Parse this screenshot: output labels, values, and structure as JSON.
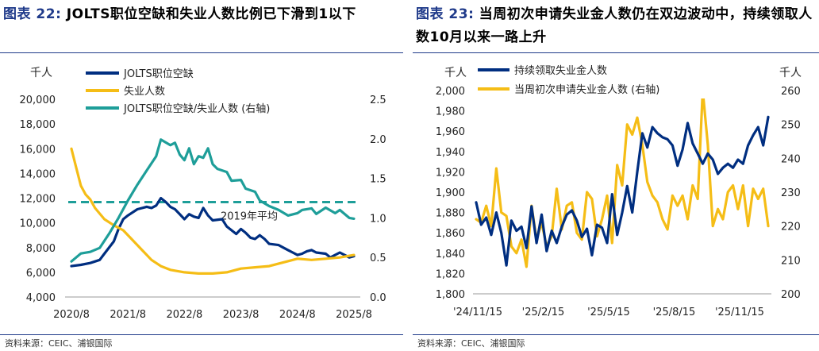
{
  "left_figure": {
    "title_tag": "图表 22:",
    "title_text": "JOLTS职位空缺和失业人数比例已下滑到1以下",
    "source": "资料来源：CEIC、浦银国际"
  },
  "right_figure": {
    "title_tag": "图表 23:",
    "title_text": "当周初次申请失业金人数仍在双边波动中，持续领取人数10月以来一路上升",
    "source": "资料来源：CEIC、浦银国际"
  },
  "chart_data": [
    {
      "type": "line",
      "title": "",
      "y_unit_label": "千人",
      "ylim": [
        4000,
        20000
      ],
      "y2lim": [
        0.0,
        2.5
      ],
      "yticks": [
        "20,000",
        "18,000",
        "16,000",
        "14,000",
        "12,000",
        "10,000",
        "8,000",
        "6,000",
        "4,000"
      ],
      "y2ticks": [
        "2.5",
        "2.0",
        "1.5",
        "1.0",
        "0.5",
        "0.0"
      ],
      "xticks": [
        "2020/8",
        "2021/8",
        "2022/8",
        "2023/8",
        "2024/8",
        "2025/8"
      ],
      "legend_position": "top-left",
      "annotation": "2019年平均",
      "reference_line": {
        "axis": "right",
        "value": 1.2,
        "style": "dashed"
      },
      "series": [
        {
          "name": "JOLTS职位空缺",
          "axis": "left",
          "color": "#002e80",
          "points": [
            [
              "2020-08",
              6500
            ],
            [
              "2020-10",
              6600
            ],
            [
              "2020-12",
              6750
            ],
            [
              "2021-02",
              7000
            ],
            [
              "2021-03",
              7500
            ],
            [
              "2021-05",
              8500
            ],
            [
              "2021-06",
              9500
            ],
            [
              "2021-07",
              10300
            ],
            [
              "2021-08",
              10600
            ],
            [
              "2021-10",
              11100
            ],
            [
              "2021-12",
              11300
            ],
            [
              "2022-01",
              11200
            ],
            [
              "2022-02",
              11400
            ],
            [
              "2022-03",
              12000
            ],
            [
              "2022-04",
              11700
            ],
            [
              "2022-05",
              11300
            ],
            [
              "2022-06",
              11100
            ],
            [
              "2022-07",
              10700
            ],
            [
              "2022-08",
              10300
            ],
            [
              "2022-09",
              10700
            ],
            [
              "2022-10",
              10500
            ],
            [
              "2022-11",
              10400
            ],
            [
              "2022-12",
              11200
            ],
            [
              "2023-01",
              10600
            ],
            [
              "2023-02",
              10200
            ],
            [
              "2023-04",
              10300
            ],
            [
              "2023-05",
              9700
            ],
            [
              "2023-07",
              9100
            ],
            [
              "2023-08",
              9500
            ],
            [
              "2023-09",
              9200
            ],
            [
              "2023-10",
              8800
            ],
            [
              "2023-11",
              8700
            ],
            [
              "2023-12",
              9000
            ],
            [
              "2024-01",
              8700
            ],
            [
              "2024-02",
              8300
            ],
            [
              "2024-04",
              8200
            ],
            [
              "2024-05",
              8000
            ],
            [
              "2024-06",
              7800
            ],
            [
              "2024-07",
              7600
            ],
            [
              "2024-08",
              7400
            ],
            [
              "2024-09",
              7500
            ],
            [
              "2024-10",
              7700
            ],
            [
              "2024-11",
              7800
            ],
            [
              "2024-12",
              7600
            ],
            [
              "2025-02",
              7500
            ],
            [
              "2025-03",
              7200
            ],
            [
              "2025-05",
              7600
            ],
            [
              "2025-06",
              7400
            ],
            [
              "2025-07",
              7200
            ],
            [
              "2025-08",
              7300
            ]
          ]
        },
        {
          "name": "失业人数",
          "axis": "left",
          "color": "#f5bd16",
          "points": [
            [
              "2020-08",
              16000
            ],
            [
              "2020-09",
              14500
            ],
            [
              "2020-10",
              13000
            ],
            [
              "2020-11",
              12300
            ],
            [
              "2020-12",
              11900
            ],
            [
              "2021-01",
              11200
            ],
            [
              "2021-03",
              10300
            ],
            [
              "2021-05",
              9800
            ],
            [
              "2021-07",
              9400
            ],
            [
              "2021-09",
              8600
            ],
            [
              "2021-11",
              7800
            ],
            [
              "2022-01",
              7000
            ],
            [
              "2022-03",
              6500
            ],
            [
              "2022-05",
              6200
            ],
            [
              "2022-08",
              6000
            ],
            [
              "2022-11",
              5900
            ],
            [
              "2023-02",
              5900
            ],
            [
              "2023-05",
              6000
            ],
            [
              "2023-08",
              6300
            ],
            [
              "2023-11",
              6400
            ],
            [
              "2024-02",
              6500
            ],
            [
              "2024-05",
              6800
            ],
            [
              "2024-08",
              7100
            ],
            [
              "2024-11",
              7000
            ],
            [
              "2025-02",
              7100
            ],
            [
              "2025-05",
              7200
            ],
            [
              "2025-08",
              7400
            ]
          ]
        },
        {
          "name": "JOLTS职位空缺/失业人数 (右轴)",
          "axis": "right",
          "color": "#1e9e99",
          "points": [
            [
              "2020-08",
              0.45
            ],
            [
              "2020-10",
              0.55
            ],
            [
              "2020-12",
              0.57
            ],
            [
              "2021-02",
              0.62
            ],
            [
              "2021-04",
              0.8
            ],
            [
              "2021-06",
              1.0
            ],
            [
              "2021-08",
              1.22
            ],
            [
              "2021-10",
              1.42
            ],
            [
              "2021-12",
              1.6
            ],
            [
              "2022-02",
              1.78
            ],
            [
              "2022-03",
              1.99
            ],
            [
              "2022-05",
              1.92
            ],
            [
              "2022-06",
              1.95
            ],
            [
              "2022-07",
              1.8
            ],
            [
              "2022-08",
              1.73
            ],
            [
              "2022-09",
              1.88
            ],
            [
              "2022-10",
              1.68
            ],
            [
              "2022-11",
              1.78
            ],
            [
              "2022-12",
              1.76
            ],
            [
              "2023-01",
              1.88
            ],
            [
              "2023-02",
              1.68
            ],
            [
              "2023-03",
              1.62
            ],
            [
              "2023-05",
              1.58
            ],
            [
              "2023-06",
              1.47
            ],
            [
              "2023-08",
              1.48
            ],
            [
              "2023-09",
              1.37
            ],
            [
              "2023-11",
              1.33
            ],
            [
              "2023-12",
              1.22
            ],
            [
              "2024-02",
              1.15
            ],
            [
              "2024-04",
              1.1
            ],
            [
              "2024-06",
              1.03
            ],
            [
              "2024-08",
              1.06
            ],
            [
              "2024-09",
              1.1
            ],
            [
              "2024-11",
              1.12
            ],
            [
              "2024-12",
              1.05
            ],
            [
              "2025-02",
              1.13
            ],
            [
              "2025-04",
              1.06
            ],
            [
              "2025-05",
              1.1
            ],
            [
              "2025-07",
              1.0
            ],
            [
              "2025-08",
              0.99
            ]
          ]
        }
      ]
    },
    {
      "type": "line",
      "title": "",
      "y_unit_label_left": "千人",
      "y_unit_label_right": "千人",
      "ylim": [
        1800,
        2000
      ],
      "y2lim": [
        200,
        260
      ],
      "yticks": [
        "2,000",
        "1,980",
        "1,960",
        "1,940",
        "1,920",
        "1,900",
        "1,880",
        "1,860",
        "1,840",
        "1,820",
        "1,800"
      ],
      "y2ticks": [
        "260",
        "250",
        "240",
        "230",
        "220",
        "210",
        "200"
      ],
      "xticks": [
        "'24/11/15",
        "'25/2/15",
        "'25/5/15",
        "'25/8/15",
        "'25/11/15"
      ],
      "legend_position": "top-left",
      "series": [
        {
          "name": "持续领取失业金人数",
          "axis": "left",
          "color": "#002e80",
          "values": [
            1890,
            1868,
            1875,
            1858,
            1880,
            1860,
            1828,
            1872,
            1862,
            1866,
            1845,
            1886,
            1850,
            1878,
            1842,
            1862,
            1850,
            1866,
            1878,
            1882,
            1872,
            1856,
            1864,
            1838,
            1868,
            1865,
            1850,
            1898,
            1858,
            1880,
            1906,
            1880,
            1920,
            1958,
            1944,
            1964,
            1958,
            1954,
            1952,
            1946,
            1926,
            1942,
            1968,
            1948,
            1938,
            1928,
            1938,
            1932,
            1918,
            1924,
            1928,
            1924,
            1932,
            1928,
            1946,
            1956,
            1964,
            1946,
            1974
          ]
        },
        {
          "name": "当周初次申请失业金人数 (右轴)",
          "axis": "right",
          "color": "#f5bd16",
          "values": [
            222,
            221,
            226,
            220,
            237,
            224,
            223,
            214,
            212,
            216,
            208,
            226,
            216,
            221,
            214,
            217,
            231,
            219,
            226,
            227,
            218,
            216,
            230,
            228,
            217,
            222,
            229,
            215,
            238,
            232,
            250,
            247,
            252,
            244,
            233,
            229,
            227,
            222,
            219,
            229,
            226,
            229,
            222,
            232,
            228,
            260,
            244,
            220,
            225,
            222,
            230,
            232,
            225,
            232,
            220,
            231,
            228,
            231,
            220
          ]
        }
      ]
    }
  ]
}
